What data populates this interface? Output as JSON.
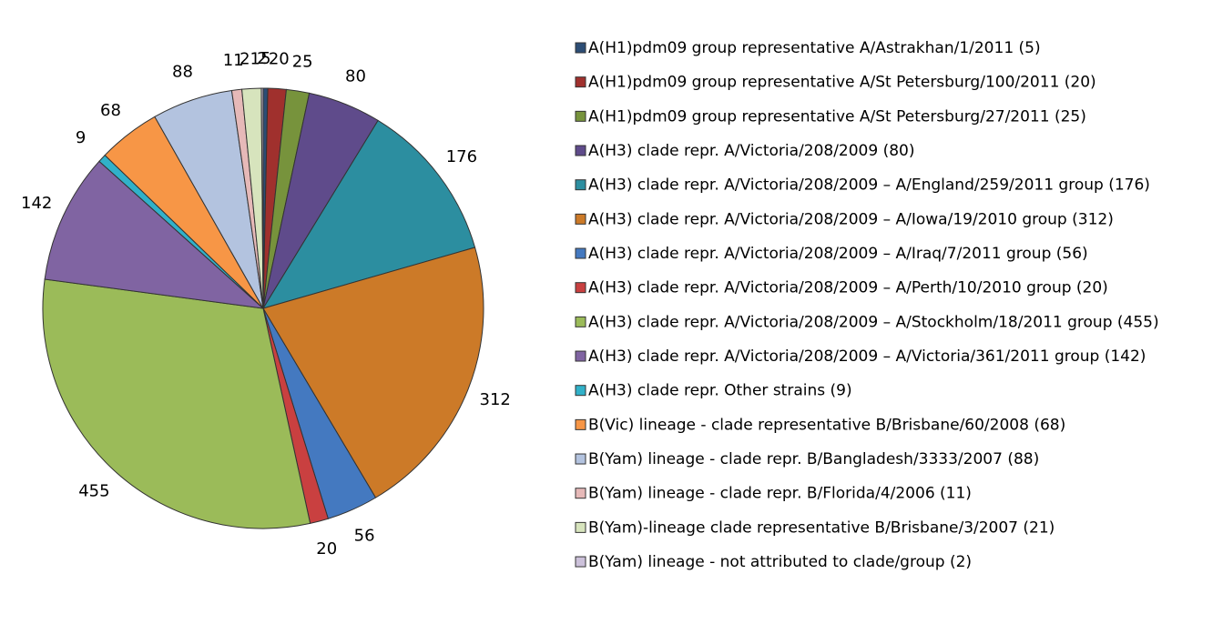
{
  "chart_data": {
    "type": "pie",
    "categories": [
      "A(H1)pdm09 group representative A/Astrakhan/1/2011 (5)",
      "A(H1)pdm09 group representative A/St Petersburg/100/2011 (20)",
      "A(H1)pdm09 group representative A/St Petersburg/27/2011 (25)",
      "A(H3) clade repr. A/Victoria/208/2009 (80)",
      "A(H3) clade repr. A/Victoria/208/2009 – A/England/259/2011 group (176)",
      "A(H3) clade repr. A/Victoria/208/2009 – A/Iowa/19/2010 group (312)",
      "A(H3) clade repr. A/Victoria/208/2009 – A/Iraq/7/2011 group (56)",
      "A(H3) clade repr. A/Victoria/208/2009 – A/Perth/10/2010 group (20)",
      "A(H3) clade repr. A/Victoria/208/2009 – A/Stockholm/18/2011 group (455)",
      "A(H3) clade repr. A/Victoria/208/2009 – A/Victoria/361/2011 group (142)",
      "A(H3) clade repr. Other strains (9)",
      "B(Vic) lineage - clade representative B/Brisbane/60/2008  (68)",
      "B(Yam) lineage - clade repr. B/Bangladesh/3333/2007 (88)",
      "B(Yam) lineage - clade repr. B/Florida/4/2006 (11)",
      "B(Yam)-lineage clade representative B/Brisbane/3/2007 (21)",
      "B(Yam) lineage - not attributed to clade/group (2)"
    ],
    "values": [
      5,
      20,
      25,
      80,
      176,
      312,
      56,
      20,
      455,
      142,
      9,
      68,
      88,
      11,
      21,
      2
    ],
    "colors": [
      "#2c4d75",
      "#a0302d",
      "#77933c",
      "#5f4b8b",
      "#2c8ea0",
      "#cc7a28",
      "#4479c0",
      "#c94040",
      "#9bbb59",
      "#8064a2",
      "#31b1c9",
      "#f79646",
      "#b3c3df",
      "#e6b9b8",
      "#d7e4bd",
      "#ccc1da"
    ]
  }
}
